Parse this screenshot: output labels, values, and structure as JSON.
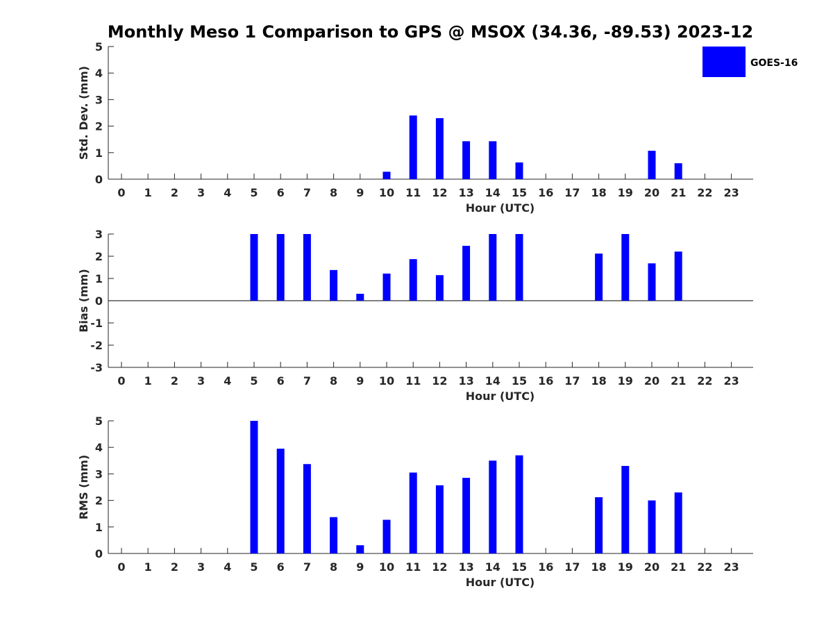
{
  "title": "Monthly Meso 1 Comparison to GPS @ MSOX (34.36, -89.53) 2023-12",
  "legend": {
    "label": "GOES-16",
    "color": "#0000ff",
    "placement": "top-right"
  },
  "chart_data": [
    {
      "type": "bar",
      "name": "std-dev",
      "ylabel": "Std. Dev. (mm)",
      "xlabel": "Hour (UTC)",
      "ylim": [
        0,
        5
      ],
      "yticks": [
        0,
        1,
        2,
        3,
        4,
        5
      ],
      "categories": [
        0,
        1,
        2,
        3,
        4,
        5,
        6,
        7,
        8,
        9,
        10,
        11,
        12,
        13,
        14,
        15,
        16,
        17,
        18,
        19,
        20,
        21,
        22,
        23
      ],
      "values": [
        null,
        null,
        null,
        null,
        null,
        null,
        null,
        null,
        null,
        null,
        0.28,
        2.4,
        2.3,
        1.43,
        1.43,
        0.63,
        null,
        null,
        null,
        null,
        1.07,
        0.6,
        null,
        null
      ]
    },
    {
      "type": "bar",
      "name": "bias",
      "ylabel": "Bias (mm)",
      "xlabel": "Hour (UTC)",
      "ylim": [
        -3,
        3
      ],
      "yticks": [
        -3,
        -2,
        -1,
        0,
        1,
        2,
        3
      ],
      "zero_line": true,
      "categories": [
        0,
        1,
        2,
        3,
        4,
        5,
        6,
        7,
        8,
        9,
        10,
        11,
        12,
        13,
        14,
        15,
        16,
        17,
        18,
        19,
        20,
        21,
        22,
        23
      ],
      "values": [
        null,
        null,
        null,
        null,
        null,
        3.0,
        3.0,
        3.0,
        1.38,
        0.31,
        1.22,
        1.87,
        1.15,
        2.47,
        3.0,
        3.0,
        null,
        null,
        2.12,
        3.0,
        1.68,
        2.21,
        null,
        null
      ]
    },
    {
      "type": "bar",
      "name": "rms",
      "ylabel": "RMS (mm)",
      "xlabel": "Hour (UTC)",
      "ylim": [
        0,
        5
      ],
      "yticks": [
        0,
        1,
        2,
        3,
        4,
        5
      ],
      "categories": [
        0,
        1,
        2,
        3,
        4,
        5,
        6,
        7,
        8,
        9,
        10,
        11,
        12,
        13,
        14,
        15,
        16,
        17,
        18,
        19,
        20,
        21,
        22,
        23
      ],
      "values": [
        null,
        null,
        null,
        null,
        null,
        5.0,
        3.95,
        3.37,
        1.37,
        0.31,
        1.27,
        3.05,
        2.57,
        2.85,
        3.5,
        3.7,
        null,
        null,
        2.12,
        3.3,
        2.0,
        2.3,
        null,
        null
      ]
    }
  ]
}
